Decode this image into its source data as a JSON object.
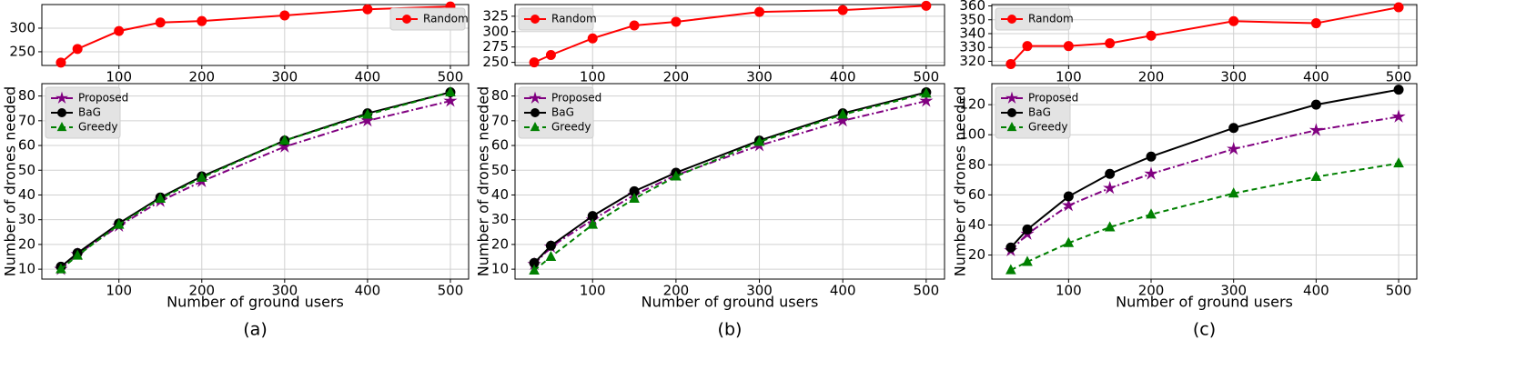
{
  "chart_data": [
    {
      "type": "line",
      "x": [
        30,
        50,
        100,
        150,
        200,
        300,
        400,
        500
      ],
      "xlim": [
        7,
        522
      ],
      "xticks": [
        100,
        200,
        300,
        400,
        500
      ],
      "ylim": [
        221,
        350
      ],
      "yticks": [
        250,
        300
      ],
      "grid": true,
      "legend": "upper right",
      "series": [
        {
          "name": "Random",
          "color": "#ff0000",
          "marker": "circle",
          "linestyle": "solid",
          "values": [
            227,
            256,
            294,
            312,
            315,
            327,
            340,
            346
          ]
        }
      ]
    },
    {
      "type": "line",
      "x": [
        30,
        50,
        100,
        150,
        200,
        300,
        400,
        500
      ],
      "xlim": [
        7,
        522
      ],
      "xticks": [
        100,
        200,
        300,
        400,
        500
      ],
      "ylim": [
        6,
        85
      ],
      "yticks": [
        10,
        20,
        30,
        40,
        50,
        60,
        70,
        80
      ],
      "grid": true,
      "legend": "upper left",
      "xlabel": "Number of ground users",
      "ylabel": "Number of drones needed",
      "caption": "(a)",
      "series": [
        {
          "name": "Proposed",
          "color": "#800080",
          "marker": "star",
          "linestyle": "dashdot",
          "values": [
            10,
            16,
            27.5,
            37.5,
            45.5,
            59.5,
            70,
            78
          ]
        },
        {
          "name": "BaG",
          "color": "#000000",
          "marker": "circle",
          "linestyle": "solid",
          "values": [
            11,
            16.5,
            28.5,
            39,
            47.5,
            62,
            73,
            81.5
          ]
        },
        {
          "name": "Greedy",
          "color": "#008000",
          "marker": "triangle",
          "linestyle": "dashed",
          "values": [
            10,
            15.5,
            28,
            38.5,
            47,
            62,
            72.5,
            81.5
          ]
        }
      ]
    },
    {
      "type": "line",
      "x": [
        30,
        50,
        100,
        150,
        200,
        300,
        400,
        500
      ],
      "xlim": [
        7,
        522
      ],
      "xticks": [
        100,
        200,
        300,
        400,
        500
      ],
      "ylim": [
        245,
        344
      ],
      "yticks": [
        250,
        275,
        300,
        325
      ],
      "grid": true,
      "legend": "upper left",
      "series": [
        {
          "name": "Random",
          "color": "#ff0000",
          "marker": "circle",
          "linestyle": "solid",
          "values": [
            250,
            262,
            289,
            310,
            316,
            332,
            335,
            342
          ]
        }
      ]
    },
    {
      "type": "line",
      "x": [
        30,
        50,
        100,
        150,
        200,
        300,
        400,
        500
      ],
      "xlim": [
        7,
        522
      ],
      "xticks": [
        100,
        200,
        300,
        400,
        500
      ],
      "ylim": [
        6,
        85
      ],
      "yticks": [
        10,
        20,
        30,
        40,
        50,
        60,
        70,
        80
      ],
      "grid": true,
      "legend": "upper left",
      "xlabel": "Number of ground users",
      "ylabel": "Number of drones needed",
      "caption": "(b)",
      "series": [
        {
          "name": "Proposed",
          "color": "#800080",
          "marker": "star",
          "linestyle": "dashdot",
          "values": [
            12,
            19,
            30,
            40,
            48,
            60,
            70,
            78
          ]
        },
        {
          "name": "BaG",
          "color": "#000000",
          "marker": "circle",
          "linestyle": "solid",
          "values": [
            12.5,
            19.5,
            31.5,
            41.5,
            49,
            62,
            73,
            81.5
          ]
        },
        {
          "name": "Greedy",
          "color": "#008000",
          "marker": "triangle",
          "linestyle": "dashed",
          "values": [
            9.5,
            15,
            28,
            38.5,
            47.5,
            61.5,
            72.5,
            81
          ]
        }
      ]
    },
    {
      "type": "line",
      "x": [
        30,
        50,
        100,
        150,
        200,
        300,
        400,
        500
      ],
      "xlim": [
        7,
        522
      ],
      "xticks": [
        100,
        200,
        300,
        400,
        500
      ],
      "ylim": [
        317,
        361
      ],
      "yticks": [
        320,
        330,
        340,
        350,
        360
      ],
      "grid": true,
      "legend": "upper left",
      "series": [
        {
          "name": "Random",
          "color": "#ff0000",
          "marker": "circle",
          "linestyle": "solid",
          "values": [
            318,
            331,
            331,
            333,
            338.5,
            349,
            347.5,
            359
          ]
        }
      ]
    },
    {
      "type": "line",
      "x": [
        30,
        50,
        100,
        150,
        200,
        300,
        400,
        500
      ],
      "xlim": [
        7,
        522
      ],
      "xticks": [
        100,
        200,
        300,
        400,
        500
      ],
      "ylim": [
        4,
        134
      ],
      "yticks": [
        20,
        40,
        60,
        80,
        100,
        120
      ],
      "grid": true,
      "legend": "upper left",
      "xlabel": "Number of ground users",
      "ylabel": "Number of drones needed",
      "caption": "(c)",
      "series": [
        {
          "name": "Proposed",
          "color": "#800080",
          "marker": "star",
          "linestyle": "dashdot",
          "values": [
            23,
            34,
            53,
            64.5,
            74,
            90.5,
            103,
            112
          ]
        },
        {
          "name": "BaG",
          "color": "#000000",
          "marker": "circle",
          "linestyle": "solid",
          "values": [
            25,
            37,
            59,
            74,
            85.5,
            104.5,
            120,
            130
          ]
        },
        {
          "name": "Greedy",
          "color": "#008000",
          "marker": "triangle",
          "linestyle": "dashed",
          "values": [
            10,
            15.5,
            28,
            38.5,
            47,
            61,
            72,
            81
          ]
        }
      ]
    }
  ]
}
